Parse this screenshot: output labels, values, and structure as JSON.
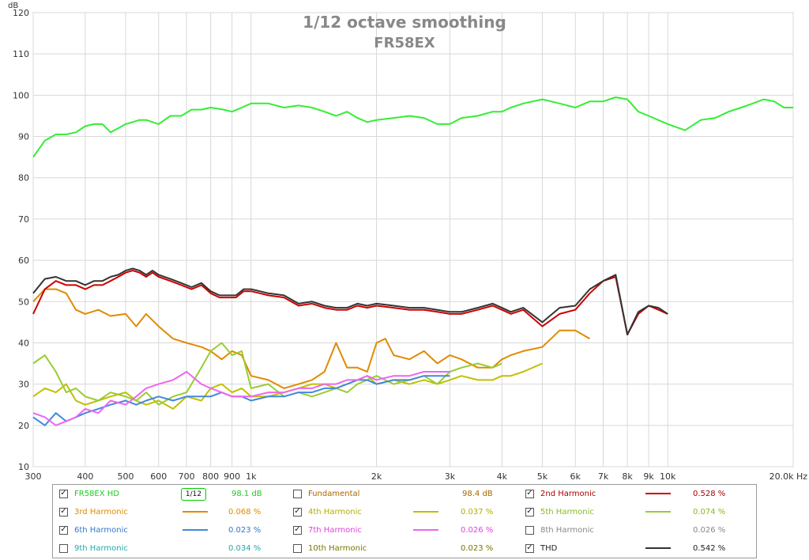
{
  "chart_data": {
    "type": "line",
    "title": "1/12 octave smoothing",
    "subtitle": "FR58EX",
    "ylabel": "dB",
    "x_scale": "log",
    "xlim": [
      300,
      20000
    ],
    "ylim": [
      10,
      120
    ],
    "x_ticks": [
      300,
      400,
      500,
      600,
      700,
      800,
      900,
      1000,
      2000,
      3000,
      4000,
      5000,
      6000,
      7000,
      8000,
      9000,
      10000,
      20000
    ],
    "x_tick_labels": [
      "300",
      "400",
      "500",
      "600",
      "700",
      "800",
      "900",
      "1k",
      "2k",
      "3k",
      "4k",
      "5k",
      "6k",
      "7k",
      "8k",
      "9k",
      "10k",
      "20.0k Hz"
    ],
    "y_ticks": [
      10,
      20,
      30,
      40,
      50,
      60,
      70,
      80,
      90,
      100,
      110,
      120
    ],
    "grid": true,
    "series": [
      {
        "name": "FR58EX HD",
        "color": "#33ee33",
        "x": [
          300,
          320,
          340,
          360,
          380,
          400,
          420,
          440,
          460,
          480,
          500,
          520,
          540,
          560,
          580,
          600,
          640,
          680,
          720,
          760,
          800,
          860,
          900,
          950,
          1000,
          1100,
          1200,
          1300,
          1400,
          1500,
          1600,
          1700,
          1800,
          1900,
          2000,
          2200,
          2400,
          2600,
          2800,
          3000,
          3200,
          3500,
          3800,
          4000,
          4200,
          4500,
          5000,
          5500,
          6000,
          6500,
          7000,
          7500,
          8000,
          8500,
          9000,
          10000,
          11000,
          12000,
          13000,
          14000,
          15000,
          16000,
          17000,
          18000,
          19000,
          20000
        ],
        "y": [
          85,
          89,
          90.5,
          90.5,
          91,
          92.5,
          93,
          93,
          91,
          92,
          93,
          93.5,
          94,
          94,
          93.5,
          93,
          95,
          95,
          96.5,
          96.5,
          97,
          96.5,
          96,
          97,
          98,
          98,
          97,
          97.5,
          97,
          96,
          95,
          96,
          94.5,
          93.5,
          94,
          94.5,
          95,
          94.5,
          93,
          93,
          94.5,
          95,
          96,
          96,
          97,
          98,
          99,
          98,
          97,
          98.5,
          98.5,
          99.5,
          99,
          96,
          95,
          93,
          91.5,
          94,
          94.5,
          96,
          97,
          98,
          99,
          98.5,
          97,
          97
        ]
      },
      {
        "name": "2nd Harmonic",
        "color": "#cc0000",
        "x": [
          300,
          320,
          340,
          360,
          380,
          400,
          420,
          440,
          460,
          480,
          500,
          520,
          540,
          560,
          580,
          600,
          640,
          680,
          720,
          760,
          800,
          840,
          880,
          920,
          960,
          1000,
          1050,
          1100,
          1200,
          1300,
          1400,
          1500,
          1600,
          1700,
          1800,
          1900,
          2000,
          2200,
          2400,
          2600,
          2800,
          3000,
          3200,
          3500,
          3800,
          4000,
          4200,
          4500,
          5000,
          5500,
          6000,
          6500,
          7000,
          7500,
          8000,
          8500,
          9000,
          9500,
          10000
        ],
        "y": [
          47,
          53,
          55,
          54,
          54,
          53,
          54,
          54,
          55,
          56,
          57,
          57.5,
          57,
          56,
          57,
          56,
          55,
          54,
          53,
          54,
          52,
          51,
          51,
          51,
          52.5,
          52.5,
          52,
          51.5,
          51,
          49,
          49.5,
          48.5,
          48,
          48,
          49,
          48.5,
          49,
          48.5,
          48,
          48,
          47.5,
          47,
          47,
          48,
          49,
          48,
          47,
          48,
          44,
          47,
          48,
          52,
          55,
          56,
          42,
          47,
          49,
          48,
          47
        ]
      },
      {
        "name": "THD",
        "color": "#333333",
        "x": [
          300,
          320,
          340,
          360,
          380,
          400,
          420,
          440,
          460,
          480,
          500,
          520,
          540,
          560,
          580,
          600,
          640,
          680,
          720,
          760,
          800,
          840,
          880,
          920,
          960,
          1000,
          1050,
          1100,
          1200,
          1300,
          1400,
          1500,
          1600,
          1700,
          1800,
          1900,
          2000,
          2200,
          2400,
          2600,
          2800,
          3000,
          3200,
          3500,
          3800,
          4000,
          4200,
          4500,
          5000,
          5500,
          6000,
          6500,
          7000,
          7500,
          8000,
          8500,
          9000,
          9500,
          10000
        ],
        "y": [
          52,
          55.5,
          56,
          55,
          55,
          54,
          55,
          55,
          56,
          56.5,
          57.5,
          58,
          57.5,
          56.5,
          57.5,
          56.5,
          55.5,
          54.5,
          53.5,
          54.5,
          52.5,
          51.5,
          51.5,
          51.5,
          53,
          53,
          52.5,
          52,
          51.5,
          49.5,
          50,
          49,
          48.5,
          48.5,
          49.5,
          49,
          49.5,
          49,
          48.5,
          48.5,
          48,
          47.5,
          47.5,
          48.5,
          49.5,
          48.5,
          47.5,
          48.5,
          45,
          48.5,
          49,
          53,
          55,
          56.5,
          42,
          47.5,
          49,
          48.5,
          47
        ]
      },
      {
        "name": "3rd Harmonic",
        "color": "#e08a00",
        "x": [
          300,
          320,
          340,
          360,
          380,
          400,
          430,
          460,
          500,
          530,
          560,
          600,
          650,
          700,
          760,
          800,
          850,
          900,
          950,
          1000,
          1100,
          1200,
          1300,
          1400,
          1500,
          1600,
          1700,
          1800,
          1900,
          2000,
          2100,
          2200,
          2400,
          2600,
          2800,
          3000,
          3200,
          3500,
          3800,
          4000,
          4200,
          4500,
          5000,
          5500,
          6000,
          6500
        ],
        "y": [
          50,
          53,
          53,
          52,
          48,
          47,
          48,
          46.5,
          47,
          44,
          47,
          44,
          41,
          40,
          39,
          38,
          36,
          38,
          37,
          32,
          31,
          29,
          30,
          31,
          33,
          40,
          34,
          34,
          33,
          40,
          41,
          37,
          36,
          38,
          35,
          37,
          36,
          34,
          34,
          36,
          37,
          38,
          39,
          43,
          43,
          41
        ]
      },
      {
        "name": "4th Harmonic",
        "color": "#c0c000",
        "x": [
          300,
          320,
          340,
          360,
          380,
          400,
          430,
          460,
          500,
          530,
          560,
          600,
          650,
          700,
          760,
          800,
          850,
          900,
          950,
          1000,
          1100,
          1200,
          1300,
          1400,
          1500,
          1600,
          1700,
          1800,
          1900,
          2000,
          2200,
          2400,
          2600,
          2800,
          3000,
          3200,
          3500,
          3800,
          4000,
          4200,
          4500,
          5000
        ],
        "y": [
          27,
          29,
          28,
          30,
          26,
          25,
          26,
          27,
          28,
          26,
          25,
          26,
          24,
          27,
          26,
          29,
          30,
          28,
          29,
          27,
          27,
          28,
          29,
          30,
          30,
          29,
          30,
          31,
          32,
          30,
          31,
          30,
          31,
          30,
          31,
          32,
          31,
          31,
          32,
          32,
          33,
          35
        ]
      },
      {
        "name": "5th Harmonic",
        "color": "#99cc33",
        "x": [
          300,
          320,
          340,
          360,
          380,
          400,
          430,
          460,
          500,
          530,
          560,
          600,
          650,
          700,
          760,
          800,
          850,
          900,
          950,
          1000,
          1100,
          1200,
          1300,
          1400,
          1500,
          1600,
          1700,
          1800,
          1900,
          2000,
          2200,
          2400,
          2600,
          2800,
          3000,
          3200,
          3500,
          3800,
          4000
        ],
        "y": [
          35,
          37,
          33,
          28,
          29,
          27,
          26,
          28,
          27,
          26,
          28,
          25,
          27,
          28,
          34,
          38,
          40,
          37,
          38,
          29,
          30,
          27,
          28,
          27,
          28,
          29,
          28,
          30,
          31,
          32,
          30,
          31,
          32,
          30,
          33,
          34,
          35,
          34,
          35
        ]
      },
      {
        "name": "6th Harmonic",
        "color": "#4488dd",
        "x": [
          300,
          320,
          340,
          360,
          380,
          400,
          430,
          460,
          500,
          530,
          560,
          600,
          650,
          700,
          760,
          800,
          850,
          900,
          950,
          1000,
          1100,
          1200,
          1300,
          1400,
          1500,
          1600,
          1700,
          1800,
          1900,
          2000,
          2200,
          2400,
          2600,
          2800,
          3000
        ],
        "y": [
          22,
          20,
          23,
          21,
          22,
          23,
          24,
          25,
          26,
          25,
          26,
          27,
          26,
          27,
          27,
          27,
          28,
          27,
          27,
          26,
          27,
          27,
          28,
          28,
          29,
          29,
          30,
          31,
          31,
          30,
          31,
          31,
          32,
          32,
          32
        ]
      },
      {
        "name": "7th Harmonic",
        "color": "#ee66ee",
        "x": [
          300,
          320,
          340,
          360,
          380,
          400,
          430,
          460,
          500,
          530,
          560,
          600,
          650,
          700,
          760,
          800,
          850,
          900,
          950,
          1000,
          1100,
          1200,
          1300,
          1400,
          1500,
          1600,
          1700,
          1800,
          1900,
          2000,
          2200,
          2400,
          2600,
          2800,
          3000
        ],
        "y": [
          23,
          22,
          20,
          21,
          22,
          24,
          23,
          26,
          25,
          27,
          29,
          30,
          31,
          33,
          30,
          29,
          28,
          27,
          27,
          27,
          28,
          28,
          29,
          29,
          30,
          30,
          31,
          31,
          32,
          31,
          32,
          32,
          33,
          33,
          33
        ]
      }
    ]
  },
  "legend": {
    "rows": [
      [
        {
          "label": "FR58EX HD",
          "value": "98.1 dB",
          "color": "#22cc22",
          "smoothing": "1/12"
        },
        {
          "label": "Fundamental",
          "value": "98.4 dB",
          "color": "#aa6600"
        },
        {
          "label": "2nd Harmonic",
          "value": "0.528 %",
          "color": "#aa0000",
          "swatch": "#cc0000"
        }
      ],
      [
        {
          "label": "3rd Harmonic",
          "value": "0.068 %",
          "color": "#e08a00",
          "swatch": "#e08a00"
        },
        {
          "label": "4th Harmonic",
          "value": "0.037 %",
          "color": "#b0b000",
          "swatch": "#c0c000"
        },
        {
          "label": "5th Harmonic",
          "value": "0.074 %",
          "color": "#88bb22",
          "swatch": "#99cc33"
        }
      ],
      [
        {
          "label": "6th Harmonic",
          "value": "0.023 %",
          "color": "#3377cc",
          "swatch": "#4488dd"
        },
        {
          "label": "7th Harmonic",
          "value": "0.026 %",
          "color": "#dd44dd",
          "swatch": "#ee66ee"
        },
        {
          "label": "8th Harmonic",
          "value": "0.026 %",
          "color": "#888888"
        }
      ],
      [
        {
          "label": "9th Harmonic",
          "value": "0.034 %",
          "color": "#22aaaa"
        },
        {
          "label": "10th Harmonic",
          "value": "0.023 %",
          "color": "#777700"
        },
        {
          "label": "THD",
          "value": "0.542 %",
          "color": "#222222",
          "swatch": "#333333"
        }
      ]
    ],
    "checked": [
      [
        true,
        false,
        true
      ],
      [
        true,
        true,
        true
      ],
      [
        true,
        true,
        false
      ],
      [
        false,
        false,
        true
      ]
    ]
  }
}
